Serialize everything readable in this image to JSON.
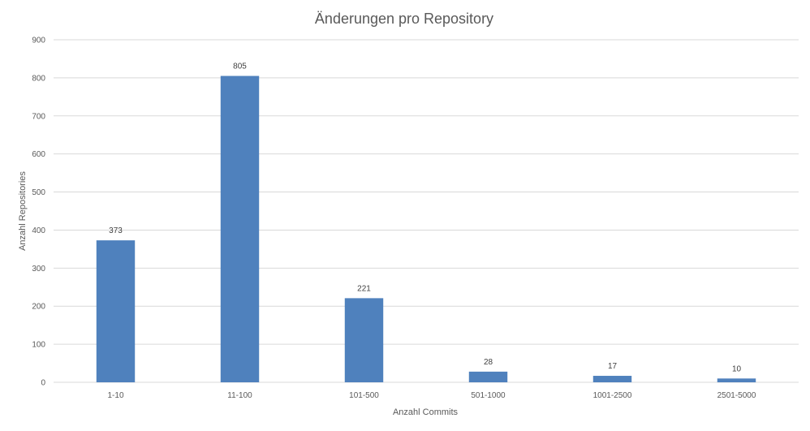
{
  "chart_data": {
    "type": "bar",
    "title": "Änderungen pro Repository",
    "xlabel": "Anzahl Commits",
    "ylabel": "Anzahl Repositories",
    "categories": [
      "1-10",
      "11-100",
      "101-500",
      "501-1000",
      "1001-2500",
      "2501-5000"
    ],
    "values": [
      373,
      805,
      221,
      28,
      17,
      10
    ],
    "ylim": [
      0,
      900
    ],
    "yticks": [
      0,
      100,
      200,
      300,
      400,
      500,
      600,
      700,
      800,
      900
    ],
    "grid": true,
    "legend": "none",
    "bar_color": "#4f81bd",
    "show_data_labels": true
  }
}
